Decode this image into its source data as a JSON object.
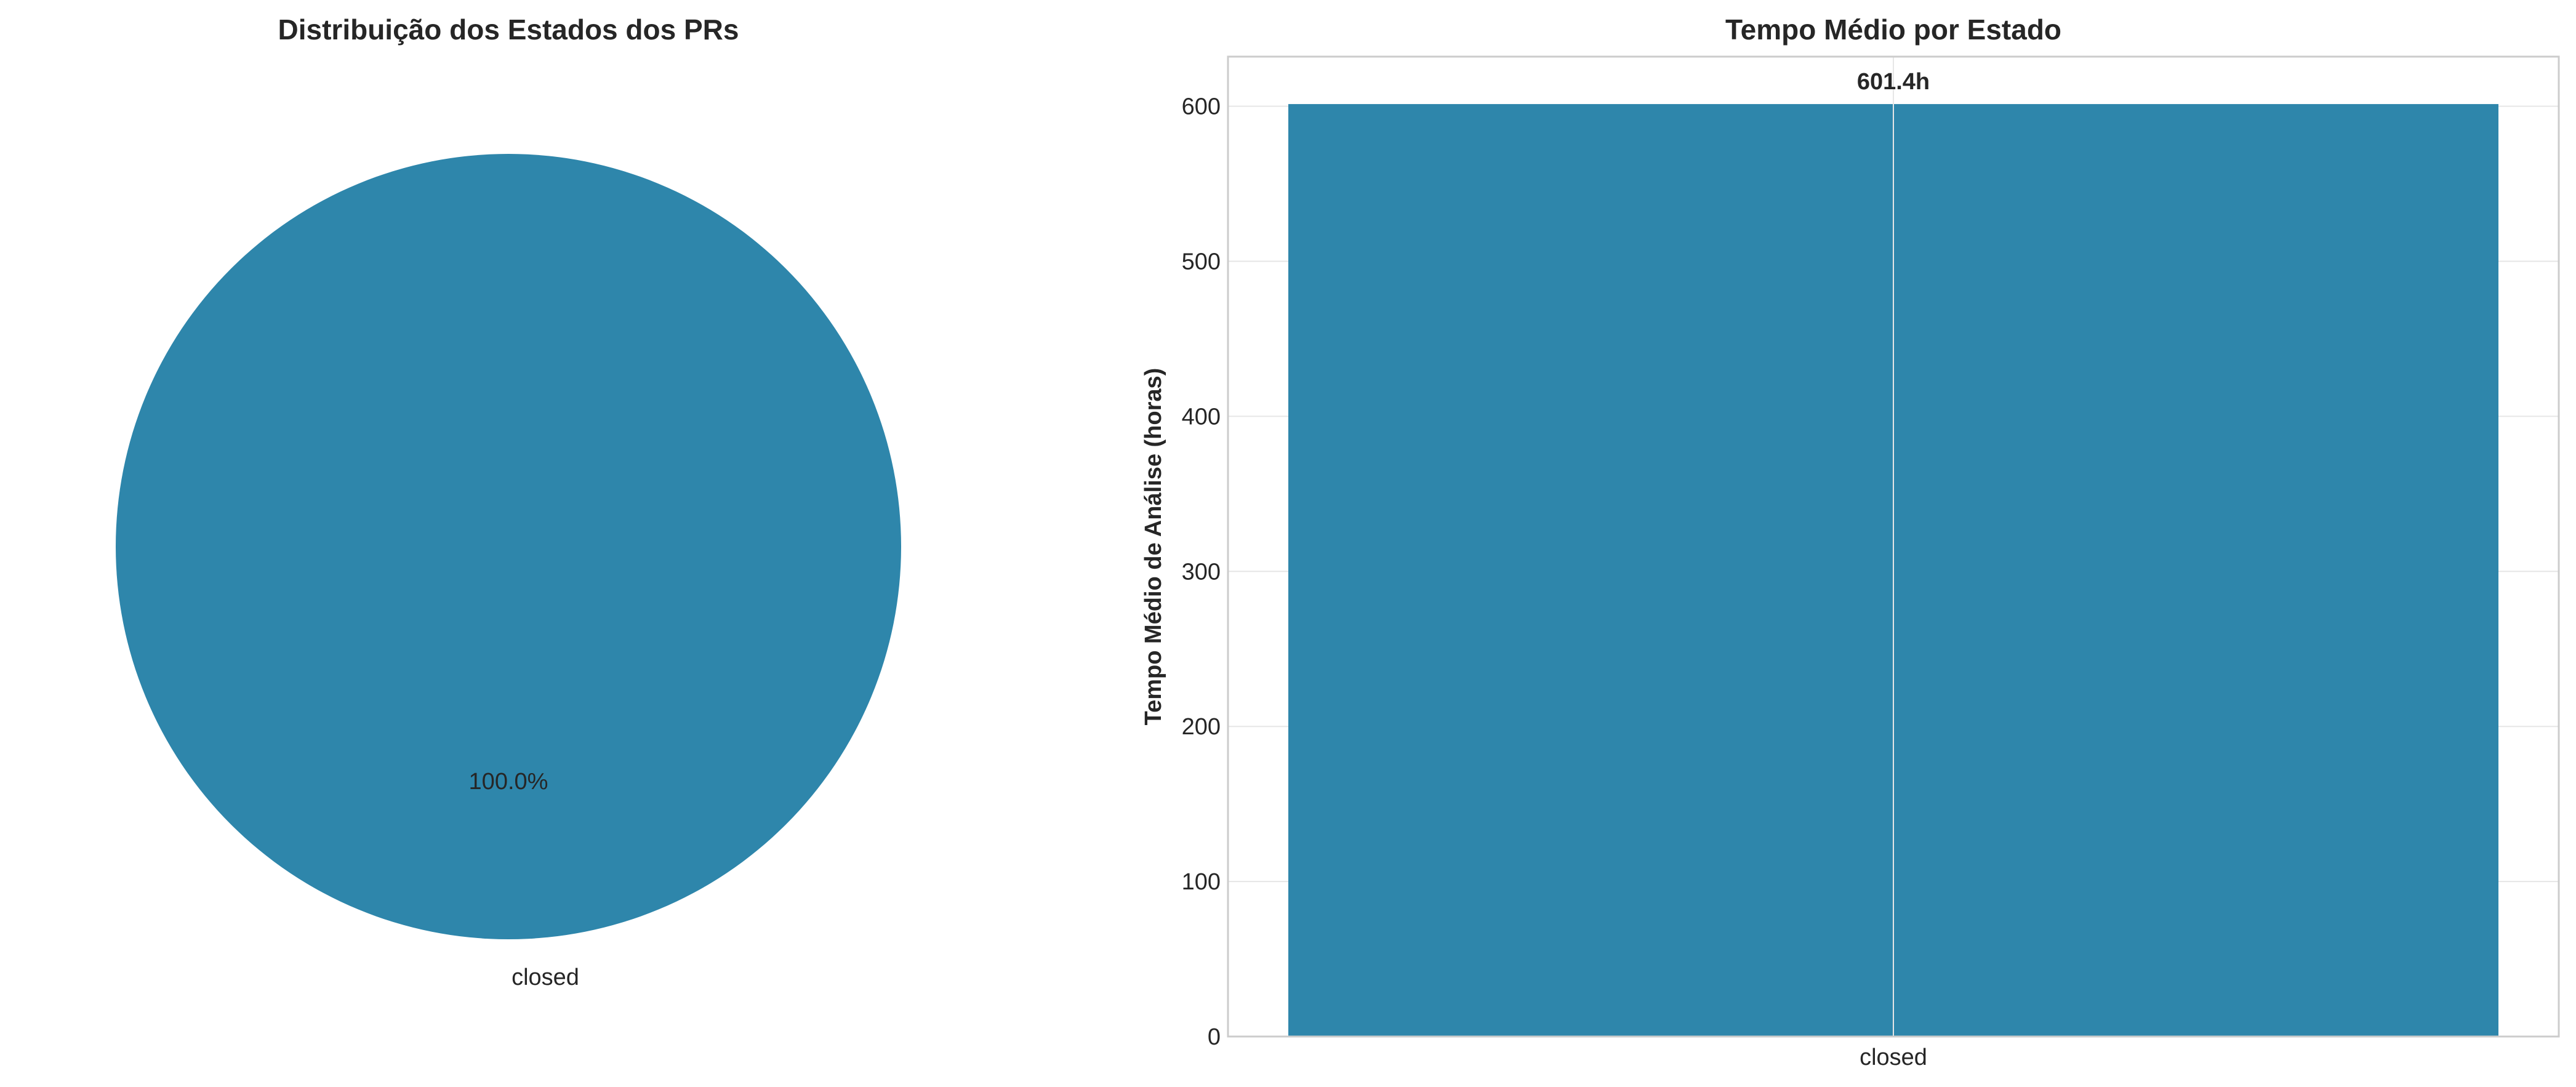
{
  "chart_data": [
    {
      "type": "pie",
      "title": "Distribuição dos Estados dos PRs",
      "slices": [
        {
          "label": "closed",
          "value": 100.0,
          "pct_label": "100.0%",
          "color": "#2E86AB"
        }
      ]
    },
    {
      "type": "bar",
      "title": "Tempo Médio por Estado",
      "xlabel": "",
      "ylabel": "Tempo Médio de Análise (horas)",
      "categories": [
        "closed"
      ],
      "values": [
        601.4
      ],
      "value_labels": [
        "601.4h"
      ],
      "ylim": [
        0,
        632
      ],
      "yticks": [
        0,
        100,
        200,
        300,
        400,
        500,
        600
      ],
      "grid": true,
      "color": "#2E86AB"
    }
  ]
}
